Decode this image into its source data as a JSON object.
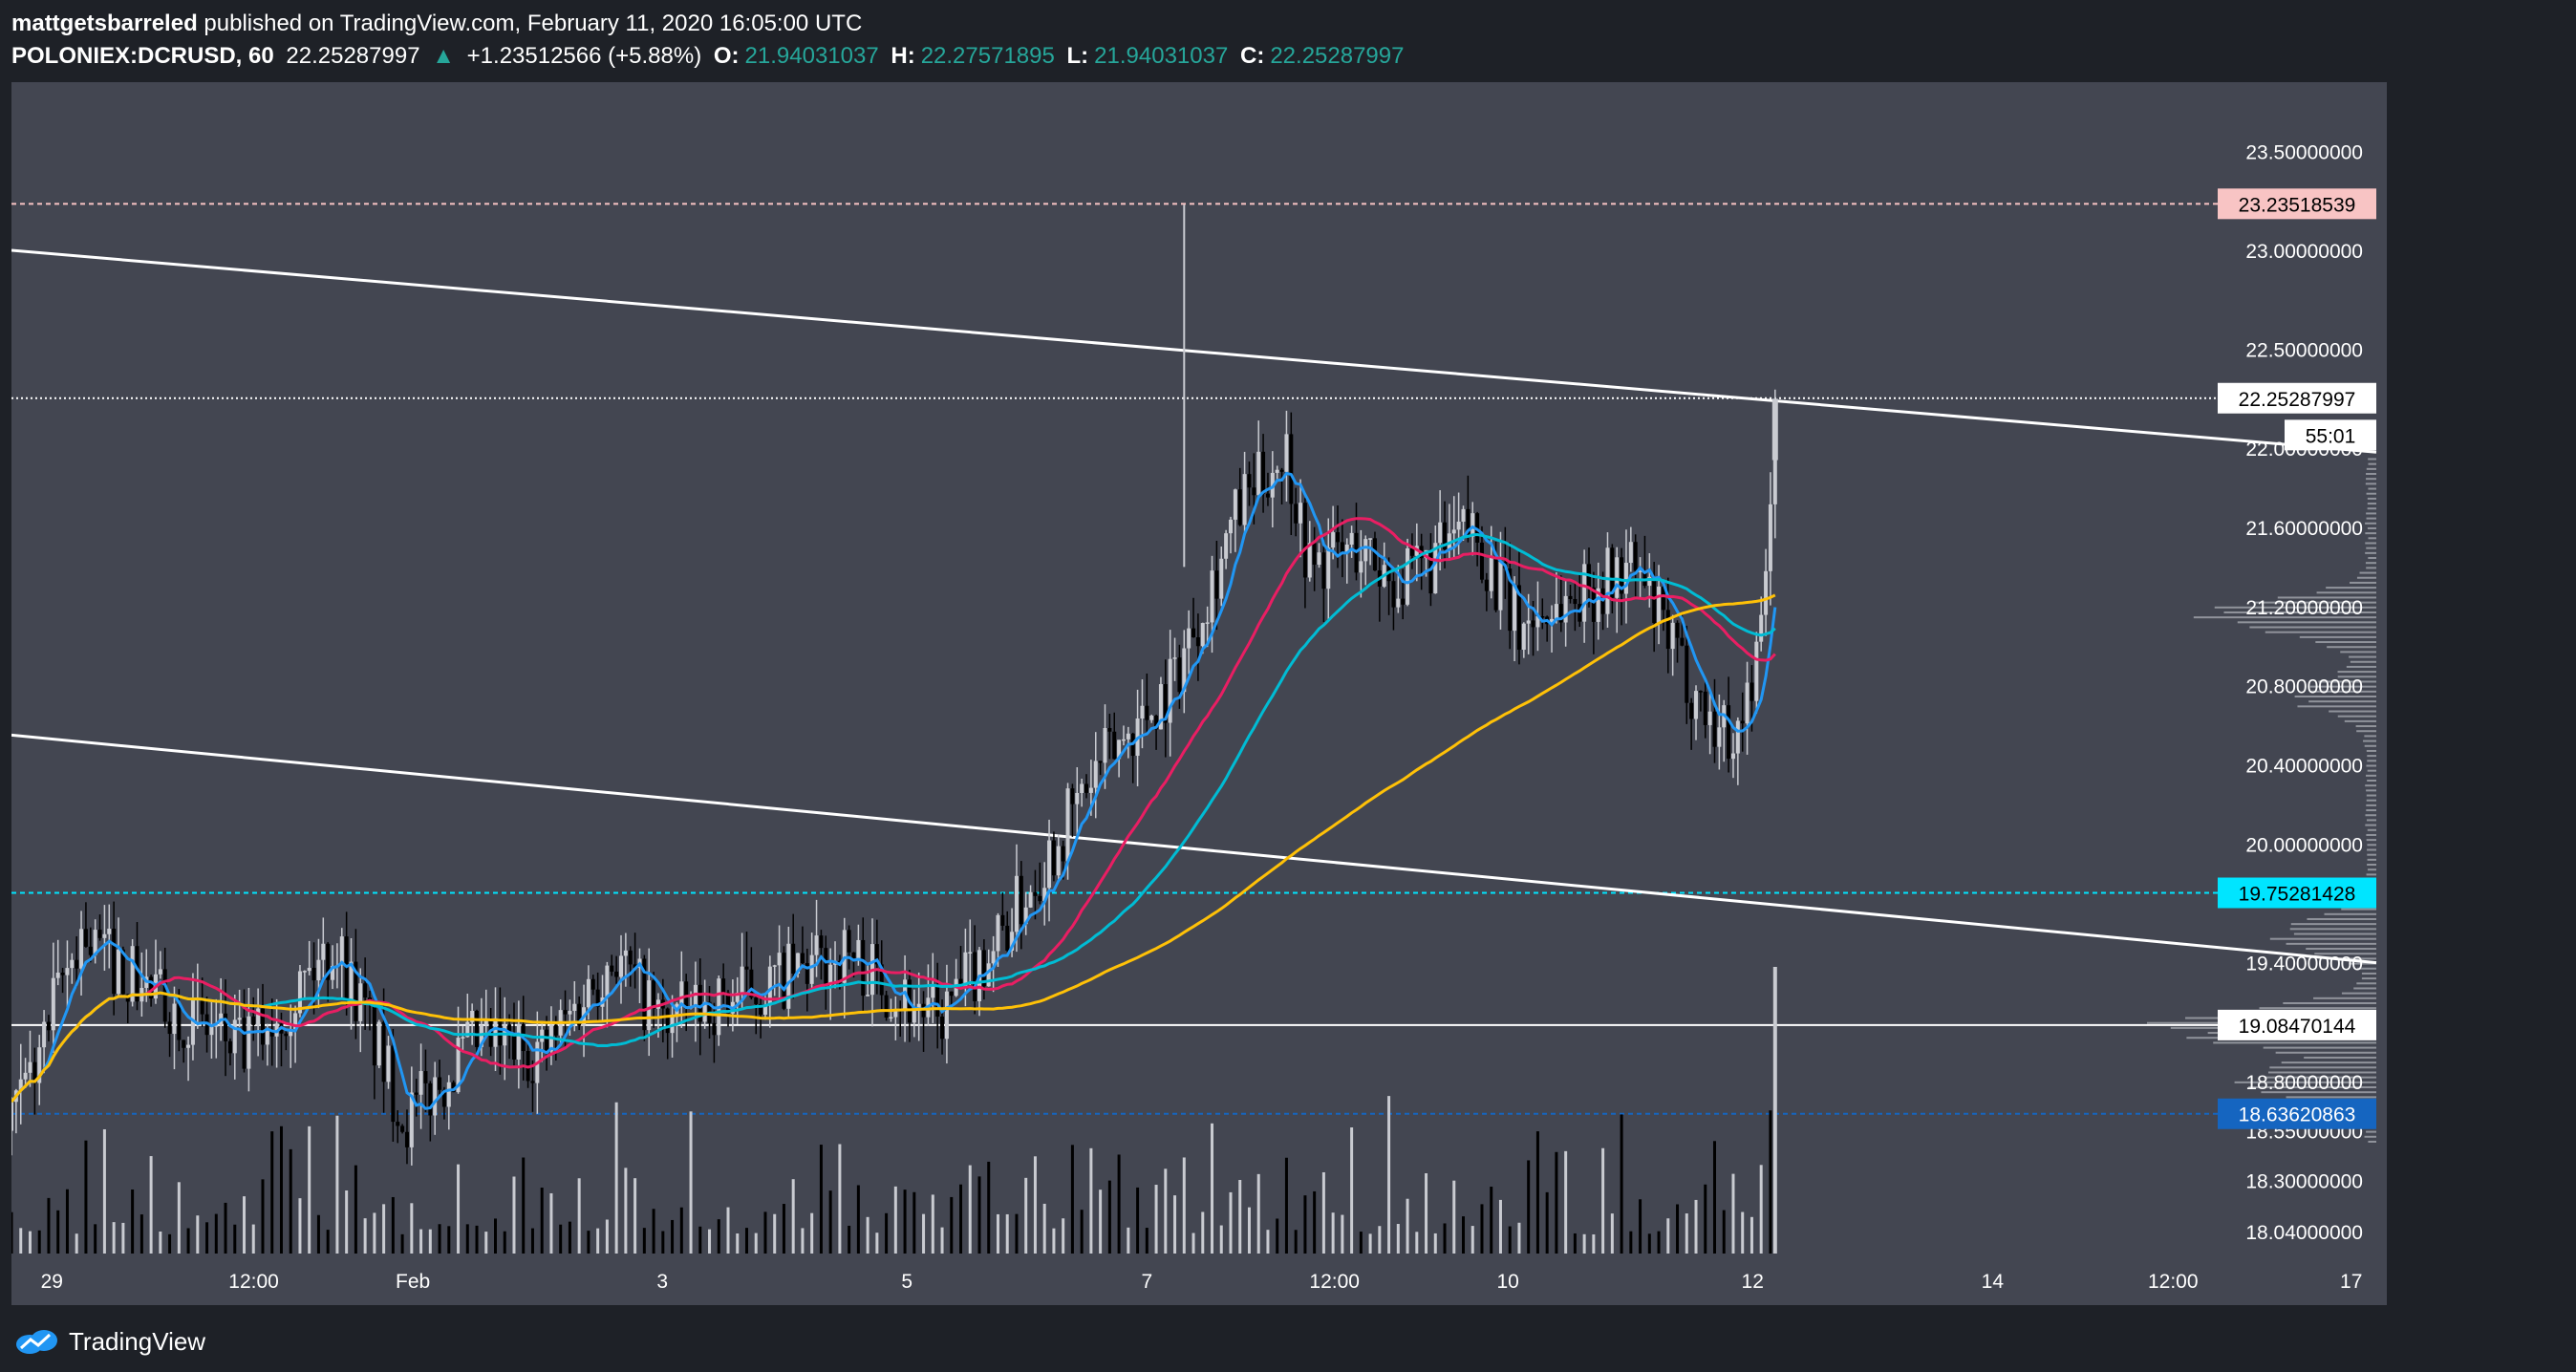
{
  "header": {
    "author": "mattgetsbarreled",
    "published_text": "published on TradingView.com, February 11, 2020 16:05:00 UTC",
    "symbol": "POLONIEX:DCRUSD, 60",
    "last_price": "22.25287997",
    "change_arrow": "▲",
    "change": "+1.23512566 (+5.88%)",
    "o_label": "O:",
    "o_value": "21.94031037",
    "h_label": "H:",
    "h_value": "22.27571895",
    "l_label": "L:",
    "l_value": "21.94031037",
    "c_label": "C:",
    "c_value": "22.25287997"
  },
  "footer": {
    "brand": "TradingView"
  },
  "colors": {
    "background": "#1e2127",
    "pane": "#434651",
    "price_up": "#26a69a",
    "ma_blue": "#2196f3",
    "ma_red": "#e91e63",
    "ma_teal": "#00bcd4",
    "ma_orange": "#ffc107",
    "resistance_pink": "#f8c4c4",
    "support_cyan": "#00e5ff",
    "support_blue": "#1565c0"
  },
  "chart_data": {
    "type": "candlestick",
    "ylim": [
      17.93,
      23.85
    ],
    "y_ticks": [
      "23.50000000",
      "23.00000000",
      "22.50000000",
      "22.00000000",
      "21.60000000",
      "21.20000000",
      "20.80000000",
      "20.40000000",
      "20.00000000",
      "19.40000000",
      "18.80000000",
      "18.55000000",
      "18.30000000",
      "18.04000000"
    ],
    "x_ticks": [
      "29",
      "12:00",
      "Feb",
      "3",
      "5",
      "7",
      "12:00",
      "10",
      "12",
      "14",
      "12:00",
      "17"
    ],
    "horizontal_levels": [
      {
        "value": 23.23518539,
        "label": "23.23518539",
        "style": "dashed",
        "color": "#f8c4c4"
      },
      {
        "value": 22.25287997,
        "label": "22.25287997",
        "style": "dotted",
        "color": "#ffffff"
      },
      {
        "value": 19.75281428,
        "label": "19.75281428",
        "style": "dashed",
        "color": "#00e5ff"
      },
      {
        "value": 19.08470144,
        "label": "19.08470144",
        "style": "solid",
        "color": "#ffffff"
      },
      {
        "value": 18.63620863,
        "label": "18.63620863",
        "style": "dashed",
        "color": "#1565c0"
      }
    ],
    "countdown": "55:01",
    "trendlines": [
      {
        "from": [
          0.0,
          23.0
        ],
        "to": [
          1.0,
          21.98
        ]
      },
      {
        "from": [
          0.0,
          20.55
        ],
        "to": [
          1.0,
          19.4
        ]
      }
    ],
    "keypoints": [
      [
        0.0,
        18.55
      ],
      [
        0.03,
        19.55
      ],
      [
        0.06,
        19.25
      ],
      [
        0.1,
        18.95
      ],
      [
        0.14,
        19.5
      ],
      [
        0.17,
        18.6
      ],
      [
        0.2,
        19.0
      ],
      [
        0.23,
        18.95
      ],
      [
        0.26,
        19.45
      ],
      [
        0.28,
        19.1
      ],
      [
        0.33,
        19.3
      ],
      [
        0.36,
        19.45
      ],
      [
        0.4,
        19.1
      ],
      [
        0.43,
        19.6
      ],
      [
        0.47,
        20.4
      ],
      [
        0.5,
        20.8
      ],
      [
        0.53,
        21.7
      ],
      [
        0.55,
        22.0
      ],
      [
        0.56,
        21.4
      ],
      [
        0.58,
        21.5
      ],
      [
        0.6,
        21.3
      ],
      [
        0.63,
        21.6
      ],
      [
        0.65,
        21.1
      ],
      [
        0.7,
        21.4
      ],
      [
        0.72,
        20.9
      ],
      [
        0.735,
        20.6
      ],
      [
        0.745,
        20.55
      ],
      [
        0.752,
        20.9
      ],
      [
        0.756,
        21.1
      ],
      [
        0.761,
        22.25
      ]
    ],
    "spikes": [
      {
        "x": 0.506,
        "high": 23.23,
        "low": 21.4
      }
    ],
    "volume_profile_levels": [
      {
        "value": 21.15,
        "weight": 0.85
      },
      {
        "value": 20.75,
        "weight": 0.35
      },
      {
        "value": 19.55,
        "weight": 0.45
      },
      {
        "value": 19.08,
        "weight": 1.0
      },
      {
        "value": 18.8,
        "weight": 0.6
      }
    ]
  }
}
